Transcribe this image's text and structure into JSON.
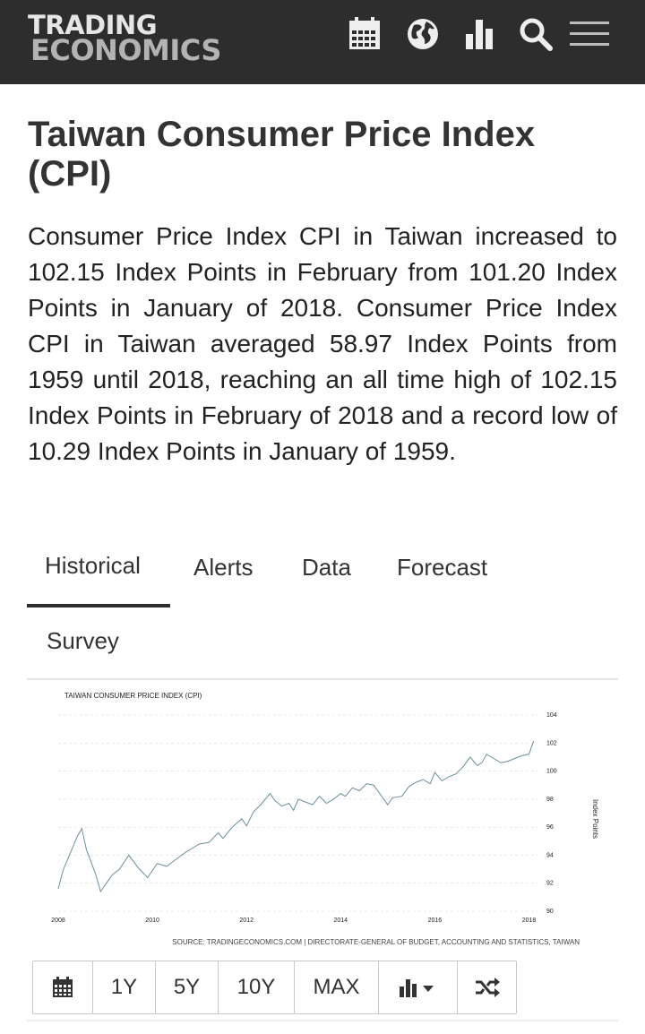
{
  "header": {
    "logo_line1": "TRADING",
    "logo_line2": "ECONOMICS",
    "icons": [
      "calendar-icon",
      "globe-icon",
      "bar-chart-icon",
      "search-icon",
      "menu-icon"
    ]
  },
  "page": {
    "title": "Taiwan Consumer Price Index (CPI)",
    "description": "Consumer Price Index CPI in Taiwan increased to 102.15 Index Points in February from 101.20 Index Points in January of 2018. Consumer Price Index CPI in Taiwan averaged 58.97 Index Points from 1959 until 2018, reaching an all time high of 102.15 Index Points in February of 2018 and a record low of 10.29 Index Points in January of 1959."
  },
  "tabs": [
    {
      "label": "Historical",
      "active": true
    },
    {
      "label": "Alerts",
      "active": false
    },
    {
      "label": "Data",
      "active": false
    },
    {
      "label": "Forecast",
      "active": false
    },
    {
      "label": "Survey",
      "active": false
    }
  ],
  "chart_data": {
    "type": "line",
    "title": "TAIWAN CONSUMER PRICE INDEX (CPI)",
    "ylabel": "Index Points",
    "source": "SOURCE: TRADINGECONOMICS.COM | DIRECTORATE-GENERAL OF BUDGET, ACCOUNTING AND STATISTICS, TAIWAN",
    "xlim": [
      2008,
      2018.2
    ],
    "ylim": [
      90,
      104
    ],
    "x_ticks": [
      "2008",
      "2010",
      "2012",
      "2014",
      "2016",
      "2018"
    ],
    "y_ticks": [
      "104",
      "102",
      "100",
      "98",
      "96",
      "94",
      "92",
      "90"
    ],
    "grid": true,
    "line_color": "#6d8f9c",
    "series": [
      {
        "x": [
          2008.0,
          2008.1,
          2008.25,
          2008.4,
          2008.5,
          2008.6,
          2008.7,
          2008.8,
          2008.9,
          2009.0,
          2009.15,
          2009.3,
          2009.5,
          2009.7,
          2009.9,
          2010.0,
          2010.1,
          2010.3,
          2010.5,
          2010.7,
          2010.9,
          2011.0,
          2011.2,
          2011.4,
          2011.5,
          2011.7,
          2011.9,
          2012.0,
          2012.15,
          2012.3,
          2012.5,
          2012.6,
          2012.75,
          2012.9,
          2013.0,
          2013.1,
          2013.25,
          2013.4,
          2013.55,
          2013.7,
          2013.85,
          2014.0,
          2014.1,
          2014.25,
          2014.4,
          2014.55,
          2014.7,
          2014.85,
          2015.0,
          2015.1,
          2015.3,
          2015.45,
          2015.6,
          2015.75,
          2015.9,
          2016.0,
          2016.15,
          2016.3,
          2016.45,
          2016.6,
          2016.75,
          2016.9,
          2017.0,
          2017.1,
          2017.25,
          2017.4,
          2017.55,
          2017.7,
          2017.85,
          2018.0,
          2018.1
        ],
        "y": [
          91.6,
          92.9,
          94.1,
          95.3,
          95.9,
          94.4,
          93.5,
          92.6,
          91.4,
          91.9,
          92.6,
          93.0,
          94.0,
          93.1,
          92.4,
          92.9,
          93.4,
          93.2,
          93.7,
          94.2,
          94.6,
          94.8,
          94.9,
          95.6,
          95.2,
          96.0,
          96.6,
          96.1,
          97.1,
          97.6,
          98.4,
          97.9,
          97.5,
          97.7,
          97.2,
          98.0,
          97.8,
          97.6,
          98.2,
          97.7,
          98.0,
          98.4,
          98.2,
          98.8,
          98.6,
          99.1,
          99.0,
          98.3,
          97.6,
          98.1,
          98.2,
          98.9,
          99.2,
          99.4,
          99.1,
          99.9,
          99.3,
          99.6,
          99.8,
          100.3,
          101.0,
          100.4,
          100.6,
          101.2,
          100.9,
          100.6,
          100.7,
          100.9,
          101.1,
          101.2,
          102.15
        ]
      }
    ]
  },
  "toolbar": {
    "buttons": [
      {
        "name": "calendar-button",
        "icon": "calendar-icon",
        "label": ""
      },
      {
        "name": "range-1y-button",
        "label": "1Y"
      },
      {
        "name": "range-5y-button",
        "label": "5Y"
      },
      {
        "name": "range-10y-button",
        "label": "10Y"
      },
      {
        "name": "range-max-button",
        "label": "MAX"
      },
      {
        "name": "chart-type-button",
        "icon": "bar-chart-dropdown-icon",
        "label": ""
      },
      {
        "name": "compare-button",
        "icon": "shuffle-icon",
        "label": ""
      }
    ]
  }
}
